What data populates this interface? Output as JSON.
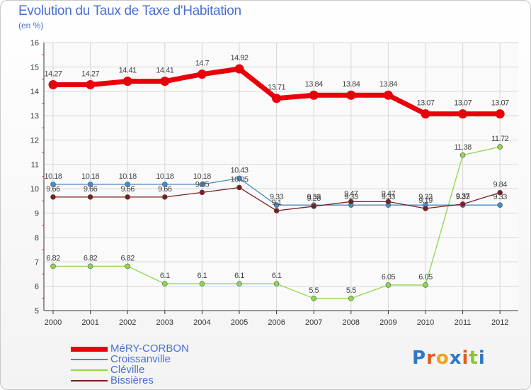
{
  "chart_data": {
    "type": "line",
    "title": "Evolution du Taux de Taxe d'Habitation",
    "unit_label": "(en %)",
    "x": [
      "2000",
      "2001",
      "2002",
      "2003",
      "2004",
      "2005",
      "2006",
      "2007",
      "2008",
      "2009",
      "2010",
      "2011",
      "2012"
    ],
    "y_ticks": [
      "5",
      "6",
      "7",
      "8",
      "9",
      "10",
      "11",
      "12",
      "13",
      "14",
      "15",
      "16"
    ],
    "ylim": [
      5,
      16
    ],
    "grid": true,
    "legend_position": "bottom-left",
    "series": [
      {
        "name": "MéRY-CORBON",
        "color": "#e8000b",
        "values": [
          14.27,
          14.27,
          14.41,
          14.41,
          14.7,
          14.92,
          13.71,
          13.84,
          13.84,
          13.84,
          13.07,
          13.07,
          13.07
        ],
        "labels": [
          "14.27",
          "14.27",
          "14.41",
          "14.41",
          "14.7",
          "14.92",
          "13.71",
          "13.84",
          "13.84",
          "13.84",
          "13.07",
          "13.07",
          "13.07"
        ]
      },
      {
        "name": "Croissanville",
        "color": "#4a8ac8",
        "values": [
          10.18,
          10.18,
          10.18,
          10.18,
          10.18,
          10.43,
          9.33,
          9.33,
          9.33,
          9.33,
          9.33,
          9.33,
          9.33
        ],
        "labels": [
          "10.18",
          "10.18",
          "10.18",
          "10.18",
          "10.18",
          "10.43",
          "9.33",
          "9.33",
          "9.33",
          "9.33",
          "9.33",
          "9.33",
          "9.33"
        ]
      },
      {
        "name": "Cléville",
        "color": "#8ed64c",
        "values": [
          6.82,
          6.82,
          6.82,
          6.1,
          6.1,
          6.1,
          6.1,
          5.5,
          5.5,
          6.05,
          6.05,
          11.38,
          11.72
        ],
        "labels": [
          "6.82",
          "6.82",
          "6.82",
          "6.1",
          "6.1",
          "6.1",
          "6.1",
          "5.5",
          "5.5",
          "6.05",
          "6.05",
          "11.38",
          "11.72"
        ]
      },
      {
        "name": "Bissières",
        "color": "#7a1e22",
        "values": [
          9.66,
          9.66,
          9.66,
          9.66,
          9.85,
          10.05,
          9.1,
          9.28,
          9.47,
          9.47,
          9.19,
          9.37,
          9.84
        ],
        "labels": [
          "9.66",
          "9.66",
          "9.66",
          "9.66",
          "9.85",
          "10.05",
          "9.1",
          "9.28",
          "9.47",
          "9.47",
          "9.19",
          "9.37",
          "9.84"
        ]
      }
    ]
  },
  "logo": {
    "text": "Proxiti",
    "letter_colors": [
      "#2f78c8",
      "#e65a1e",
      "#f2a020",
      "#2f78c8",
      "#e65a1e",
      "#8ac23c",
      "#2f78c8"
    ]
  }
}
